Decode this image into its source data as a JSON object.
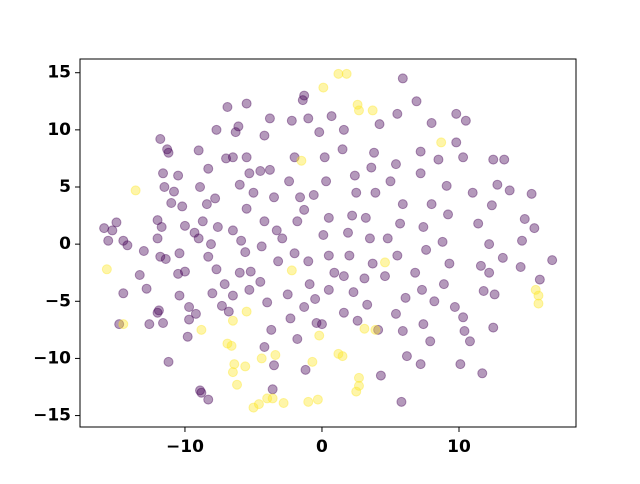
{
  "chart_data": {
    "type": "scatter",
    "xlim": [
      -17.66,
      18.54
    ],
    "ylim": [
      -16.0,
      16.2
    ],
    "xticks": [
      {
        "value": -10,
        "label": "−10"
      },
      0,
      10
    ],
    "yticks": [
      {
        "value": -15,
        "label": "−15"
      },
      {
        "value": -10,
        "label": "−10"
      },
      {
        "value": -5,
        "label": "−5"
      },
      0,
      5,
      10,
      15
    ],
    "opacity": 0.4,
    "series": [
      {
        "color": "#440154",
        "x": [
          -15.9,
          -15.3,
          -15.6,
          -15.0,
          -14.5,
          -14.2,
          -14.5,
          -14.8,
          -13.3,
          -12.8,
          -13.0,
          -12.6,
          -12.0,
          -11.9,
          -11.6,
          -11.2,
          -12.0,
          -11.8,
          -11.4,
          -12.0,
          -11.7,
          -11.0,
          -11.5,
          -11.6,
          -10.8,
          -11.3,
          -11.2,
          -10.5,
          -11.8,
          -10.2,
          -10.0,
          -10.4,
          -10.5,
          -10.0,
          -10.4,
          -9.7,
          -9.2,
          -9.8,
          -8.9,
          -8.8,
          -8.3,
          -9.0,
          -9.3,
          -8.7,
          -8.9,
          -8.4,
          -9.0,
          -8.3,
          -7.8,
          -7.6,
          -8.1,
          -8.3,
          -7.7,
          -8.0,
          -7.1,
          -7.3,
          -6.8,
          -6.5,
          -7.7,
          -6.9,
          -6.1,
          -5.5,
          -6.3,
          -7.0,
          -6.5,
          -5.5,
          -6.0,
          -5.0,
          -5.3,
          -4.5,
          -5.5,
          -6.5,
          -5.9,
          -5.6,
          -6.0,
          -5.2,
          -4.5,
          -5.3,
          -4.0,
          -3.7,
          -4.2,
          -3.5,
          -3.6,
          -4.2,
          -4.4,
          -4.2,
          -3.8,
          -3.8,
          -3.5,
          -3.3,
          -2.9,
          -3.2,
          -2.5,
          -2.3,
          -1.8,
          -1.2,
          -2.2,
          -1.3,
          -1.4,
          -1.0,
          -2.0,
          -2.4,
          -1.6,
          -1.3,
          -1.8,
          -2.0,
          -1.0,
          -0.9,
          -1.3,
          -0.5,
          -0.4,
          0.0,
          0.5,
          0.9,
          0.5,
          0.1,
          0.5,
          -0.6,
          0.3,
          0.2,
          -0.2,
          0.7,
          1.6,
          1.5,
          2.4,
          2.5,
          2.2,
          1.9,
          2.0,
          1.6,
          2.3,
          1.6,
          2.6,
          3.3,
          3.1,
          3.7,
          3.5,
          3.2,
          3.9,
          3.6,
          3.8,
          4.2,
          5.5,
          5.9,
          6.9,
          5.4,
          5.0,
          5.9,
          5.7,
          4.8,
          5.5,
          4.6,
          6.1,
          5.4,
          5.9,
          4.1,
          4.3,
          5.8,
          6.2,
          7.4,
          7.9,
          8.2,
          7.3,
          6.8,
          7.6,
          7.4,
          8.0,
          7.2,
          8.5,
          7.2,
          8.0,
          9.8,
          10.5,
          9.8,
          10.3,
          9.1,
          9.2,
          8.8,
          9.3,
          8.9,
          9.7,
          10.3,
          10.4,
          10.8,
          11.7,
          11.8,
          11.6,
          12.2,
          11.4,
          12.4,
          11.0,
          12.5,
          12.8,
          13.3,
          13.7,
          14.8,
          14.6,
          15.3,
          15.5,
          14.5,
          15.9,
          16.8,
          13.2,
          12.6,
          12.5,
          10.1,
          7.2,
          12.2,
          -9.7
        ],
        "values": [
          1.4,
          1.2,
          0.3,
          1.9,
          0.3,
          -0.1,
          -4.3,
          -7.0,
          -2.7,
          -3.9,
          -0.6,
          -7.0,
          -6.0,
          -5.8,
          -6.9,
          -10.3,
          0.5,
          -1.1,
          -1.3,
          2.1,
          1.5,
          3.6,
          5.0,
          6.2,
          4.6,
          8.3,
          8.0,
          6.0,
          9.2,
          3.3,
          1.6,
          -0.8,
          -2.6,
          -2.4,
          -4.5,
          -5.5,
          -6.1,
          -8.1,
          -12.8,
          -13.0,
          -13.6,
          0.5,
          1.0,
          2.0,
          5.0,
          3.5,
          8.2,
          6.6,
          4.0,
          1.5,
          0.0,
          -1.1,
          -2.2,
          -4.3,
          -3.5,
          -5.4,
          -5.9,
          -4.5,
          10.0,
          12.0,
          10.3,
          12.3,
          9.8,
          7.5,
          7.6,
          7.6,
          5.2,
          4.5,
          6.2,
          6.4,
          3.1,
          1.2,
          0.3,
          -0.7,
          -2.5,
          -2.4,
          -3.3,
          -4.0,
          -5.1,
          -7.5,
          -9.0,
          -10.6,
          -12.7,
          2.0,
          -0.2,
          9.5,
          11.0,
          6.5,
          4.1,
          1.2,
          0.5,
          -1.5,
          -4.4,
          -6.5,
          -8.3,
          -11.0,
          10.8,
          13.0,
          12.6,
          11.0,
          7.6,
          5.5,
          4.1,
          3.0,
          2.0,
          -0.8,
          -1.5,
          -3.5,
          -5.5,
          -4.8,
          -6.9,
          -7.0,
          -4.0,
          -2.5,
          -1.0,
          0.8,
          2.3,
          4.3,
          5.5,
          7.6,
          9.8,
          11.2,
          10.0,
          8.3,
          6.0,
          4.5,
          2.5,
          1.0,
          -1.0,
          -2.8,
          -4.2,
          -6.0,
          -6.7,
          -5.3,
          -3.0,
          -1.7,
          0.5,
          2.3,
          4.5,
          6.7,
          8.0,
          10.5,
          11.4,
          14.5,
          12.5,
          7.0,
          5.5,
          3.5,
          1.8,
          0.5,
          -1.0,
          -2.8,
          -4.7,
          -6.1,
          -7.6,
          -7.5,
          -11.5,
          -13.8,
          -9.8,
          -7.0,
          -8.5,
          -5.0,
          -4.0,
          -2.5,
          -0.5,
          1.5,
          3.5,
          6.2,
          7.4,
          8.1,
          10.6,
          11.4,
          10.8,
          8.9,
          7.6,
          5.1,
          2.6,
          0.2,
          -1.7,
          -3.5,
          -5.5,
          -6.4,
          -7.6,
          -8.5,
          -11.3,
          -4.1,
          -1.9,
          0.0,
          1.8,
          3.4,
          4.5,
          7.4,
          5.2,
          7.4,
          4.7,
          2.2,
          0.3,
          4.4,
          1.4,
          -2.0,
          -3.1,
          -1.4,
          -1.2,
          -4.4,
          -7.3,
          -10.5,
          -10.5,
          -2.5,
          -6.6
        ]
      },
      {
        "color": "#fde725",
        "x": [
          -15.7,
          -14.5,
          -13.6,
          0.1,
          1.2,
          1.8,
          2.7,
          3.7,
          2.6,
          -1.5,
          8.7,
          4.6,
          -2.2,
          15.8,
          15.8,
          15.6,
          -8.8,
          -6.5,
          -5.5,
          -6.9,
          -6.6,
          -6.4,
          -5.6,
          -6.5,
          -6.2,
          -4.4,
          -3.4,
          -5.0,
          -4.6,
          -4.0,
          -3.6,
          -2.8,
          -1.0,
          -0.3,
          -0.7,
          -0.2,
          1.2,
          1.5,
          2.5,
          2.7,
          2.7,
          3.1,
          3.9
        ],
        "values": [
          -2.2,
          -7.0,
          4.7,
          13.7,
          14.9,
          14.9,
          11.7,
          11.7,
          12.2,
          7.3,
          8.9,
          -1.6,
          -2.3,
          -4.5,
          -5.2,
          -4.0,
          -7.5,
          -6.7,
          -5.9,
          -8.7,
          -8.9,
          -10.5,
          -10.7,
          -11.2,
          -12.3,
          -10.0,
          -9.7,
          -14.3,
          -14.0,
          -13.5,
          -13.5,
          -13.9,
          -13.8,
          -13.6,
          -10.3,
          -8.0,
          -9.6,
          -9.8,
          -12.9,
          -12.4,
          -11.7,
          -7.4,
          -7.5
        ]
      }
    ]
  }
}
